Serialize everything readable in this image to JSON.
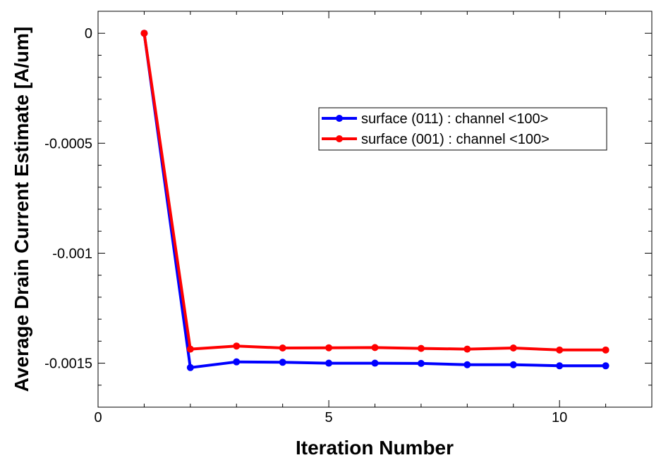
{
  "chart_data": {
    "type": "line",
    "title": "",
    "xlabel": "Iteration Number",
    "ylabel": "Average Drain Current Estimate [A/um]",
    "xlim": [
      0,
      12
    ],
    "ylim": [
      -0.0017,
      0.0001
    ],
    "x_ticks": [
      0,
      5,
      10
    ],
    "x_tick_labels": [
      "0",
      "5",
      "10"
    ],
    "y_ticks": [
      0,
      -0.0005,
      -0.001,
      -0.0015
    ],
    "y_tick_labels": [
      "0",
      "-0.0005",
      "-0.001",
      "-0.0015"
    ],
    "grid": false,
    "legend_position": "upper-right",
    "series": [
      {
        "name": "surface (011) : channel <100>",
        "color": "#0000ff",
        "x": [
          1,
          2,
          3,
          4,
          5,
          6,
          7,
          8,
          9,
          10,
          11
        ],
        "y": [
          0,
          -0.00152,
          -0.001494,
          -0.001496,
          -0.0015,
          -0.0015,
          -0.001501,
          -0.001507,
          -0.001507,
          -0.001512,
          -0.001512
        ]
      },
      {
        "name": "surface (001) : channel <100>",
        "color": "#ff0000",
        "x": [
          1,
          2,
          3,
          4,
          5,
          6,
          7,
          8,
          9,
          10,
          11
        ],
        "y": [
          0,
          -0.001436,
          -0.001422,
          -0.001431,
          -0.00143,
          -0.001429,
          -0.001433,
          -0.001436,
          -0.001431,
          -0.00144,
          -0.00144
        ]
      }
    ]
  }
}
